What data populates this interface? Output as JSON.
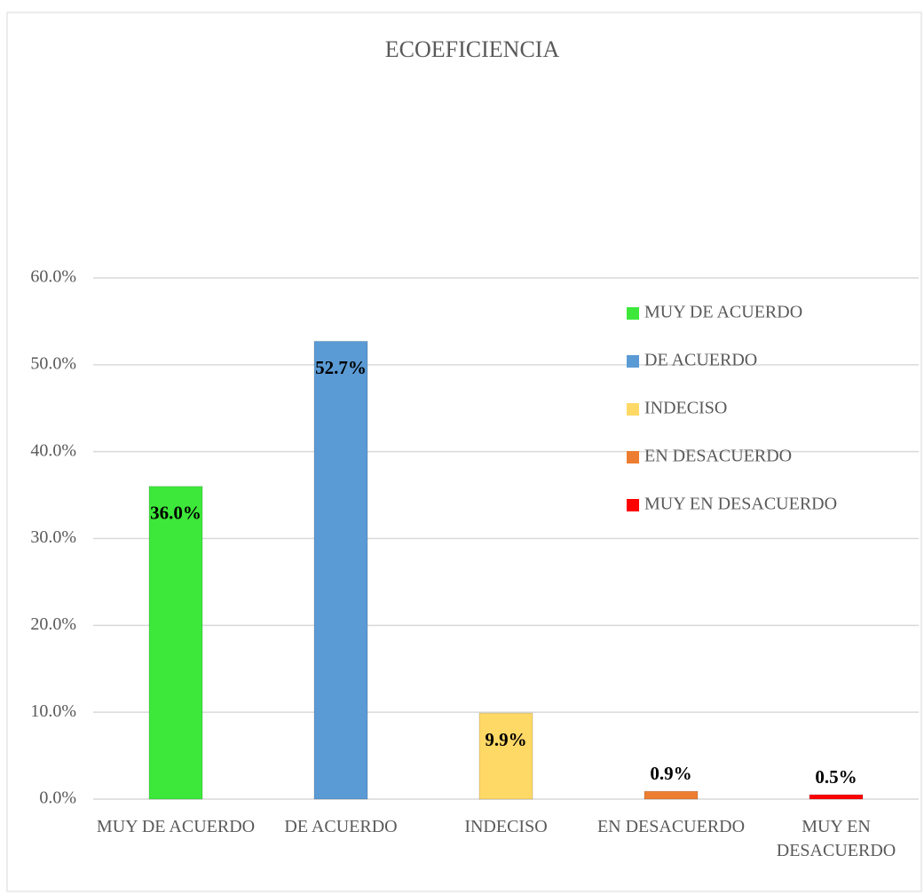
{
  "chart_data": {
    "type": "bar",
    "title": "ECOEFICIENCIA",
    "categories": [
      "MUY DE ACUERDO",
      "DE ACUERDO",
      "INDECISO",
      "EN DESACUERDO",
      "MUY EN DESACUERDO"
    ],
    "values": [
      36.0,
      52.7,
      9.9,
      0.9,
      0.5
    ],
    "value_labels": [
      "36.0%",
      "52.7%",
      "9.9%",
      "0.9%",
      "0.5%"
    ],
    "colors": [
      "#3de83a",
      "#5b9bd5",
      "#ffd966",
      "#ed7d31",
      "#ff0000"
    ],
    "ylim": [
      0,
      60
    ],
    "yticks": [
      {
        "value": 0,
        "label": "0.0%"
      },
      {
        "value": 10,
        "label": "10.0%"
      },
      {
        "value": 20,
        "label": "20.0%"
      },
      {
        "value": 30,
        "label": "30.0%"
      },
      {
        "value": 40,
        "label": "40.0%"
      },
      {
        "value": 50,
        "label": "50.0%"
      },
      {
        "value": 60,
        "label": "60.0%"
      }
    ],
    "grid": true,
    "legend": "upper right"
  }
}
